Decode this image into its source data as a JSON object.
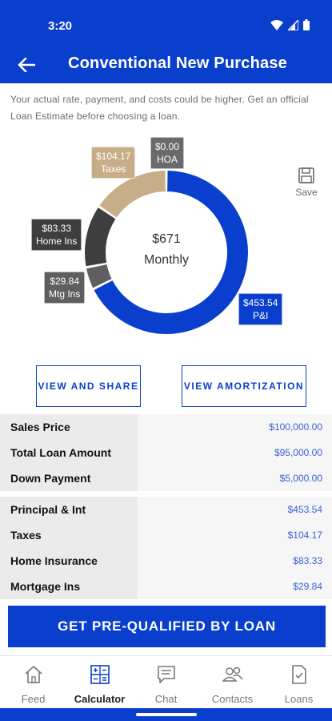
{
  "status_bar": {
    "time": "3:20"
  },
  "header": {
    "title": "Conventional New Purchase"
  },
  "disclaimer": "Your actual rate, payment, and costs could be higher. Get an official Loan Estimate before choosing a loan.",
  "chart_data": {
    "type": "pie",
    "variant": "donut",
    "center_amount": "$671",
    "center_label": "Monthly",
    "slices": [
      {
        "label": "P&I",
        "value": 453.54,
        "display": "$453.54",
        "color": "#0a3fce"
      },
      {
        "label": "Mtg Ins",
        "value": 29.84,
        "display": "$29.84",
        "color": "#5f5f5f"
      },
      {
        "label": "Home Ins",
        "value": 83.33,
        "display": "$83.33",
        "color": "#3e3e3e"
      },
      {
        "label": "Taxes",
        "value": 104.17,
        "display": "$104.17",
        "color": "#c8ae88"
      },
      {
        "label": "HOA",
        "value": 0.0,
        "display": "$0.00",
        "color": "#6a6a6a"
      }
    ]
  },
  "save": {
    "label": "Save"
  },
  "buttons": {
    "view_share": "VIEW AND SHARE",
    "view_amortization": "VIEW AMORTIZATION"
  },
  "loan_table": [
    {
      "label": "Sales Price",
      "value": "$100,000.00"
    },
    {
      "label": "Total Loan Amount",
      "value": "$95,000.00"
    },
    {
      "label": "Down Payment",
      "value": "$5,000.00"
    }
  ],
  "payment_table": [
    {
      "label": "Principal & Int",
      "value": "$453.54"
    },
    {
      "label": "Taxes",
      "value": "$104.17"
    },
    {
      "label": "Home Insurance",
      "value": "$83.33"
    },
    {
      "label": "Mortgage Ins",
      "value": "$29.84"
    }
  ],
  "cta": {
    "label": "GET PRE-QUALIFIED BY LOAN"
  },
  "nav": [
    {
      "label": "Feed",
      "icon": "home-icon",
      "active": false
    },
    {
      "label": "Calculator",
      "icon": "calculator-icon",
      "active": true
    },
    {
      "label": "Chat",
      "icon": "chat-icon",
      "active": false
    },
    {
      "label": "Contacts",
      "icon": "contacts-icon",
      "active": false
    },
    {
      "label": "Loans",
      "icon": "document-icon",
      "active": false
    }
  ]
}
